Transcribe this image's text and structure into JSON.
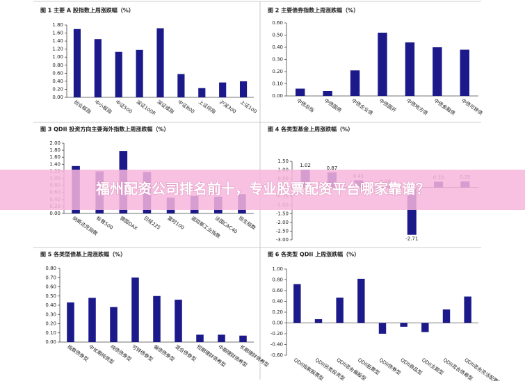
{
  "chart_data": [
    {
      "type": "bar",
      "title": "图 1  主要 A 股指数上周涨跌幅（%）",
      "color": "#1c1a8a",
      "categories": [
        "创业板指",
        "中小板指",
        "中证500",
        "深证100R",
        "深证成指",
        "中证800",
        "上证综指",
        "沪深300",
        "上证100"
      ],
      "values": [
        1.7,
        1.45,
        1.13,
        1.18,
        1.72,
        0.58,
        0.23,
        0.37,
        0.4
      ],
      "ylim": [
        0,
        1.8
      ],
      "yticks": [
        {
          "value": 0,
          "label": "0.00"
        },
        {
          "value": 0.2,
          "label": "0.20"
        },
        {
          "value": 0.4,
          "label": "0.40"
        },
        {
          "value": 0.6,
          "label": "0.60"
        },
        {
          "value": 0.8,
          "label": "0.80"
        },
        {
          "value": 1.0,
          "label": "1.00"
        },
        {
          "value": 1.2,
          "label": "1.20"
        },
        {
          "value": 1.4,
          "label": "1.40"
        },
        {
          "value": 1.6,
          "label": "1.60"
        },
        {
          "value": 1.8,
          "label": "1.80"
        }
      ]
    },
    {
      "type": "bar",
      "title": "图 2  主要债券指数上周涨跌幅（%）",
      "color": "#1c1a8a",
      "categories": [
        "中债总指",
        "中债国债",
        "中债企业债",
        "中债国开",
        "中债地方债",
        "中债金融债",
        "中债可转债"
      ],
      "values": [
        0.06,
        0.04,
        0.21,
        0.52,
        0.44,
        0.4,
        0.38
      ],
      "ylim": [
        0,
        0.6
      ],
      "yticks": [
        {
          "value": 0,
          "label": "0.00"
        },
        {
          "value": 0.1,
          "label": "0.10"
        },
        {
          "value": 0.2,
          "label": "0.20"
        },
        {
          "value": 0.3,
          "label": "0.30"
        },
        {
          "value": 0.4,
          "label": "0.40"
        },
        {
          "value": 0.5,
          "label": "0.50"
        },
        {
          "value": 0.6,
          "label": "0.60"
        }
      ]
    },
    {
      "type": "bar",
      "title": "图 3 QDII 投资方向主要海外指数上周涨跌幅（%）",
      "color": "#1c1a8a",
      "categories": [
        "纳斯达克指数",
        "标普500",
        "德国DAX",
        "日经225",
        "富时100",
        "道琼斯工业指数",
        "法国CAC40",
        "恒生指数"
      ],
      "values": [
        1.35,
        1.2,
        1.78,
        1.18,
        0.45,
        0.5,
        0.48,
        0.55
      ],
      "ylim": [
        0,
        2.0
      ],
      "yticks": [
        {
          "value": 0,
          "label": "0.00"
        },
        {
          "value": 0.2,
          "label": "0.20"
        },
        {
          "value": 0.4,
          "label": "0.40"
        },
        {
          "value": 0.6,
          "label": "0.60"
        },
        {
          "value": 0.8,
          "label": "0.80"
        },
        {
          "value": 1.0,
          "label": "1.00"
        },
        {
          "value": 1.2,
          "label": "1.20"
        },
        {
          "value": 1.4,
          "label": "1.40"
        },
        {
          "value": 1.6,
          "label": "1.60"
        },
        {
          "value": 1.8,
          "label": "1.80"
        },
        {
          "value": 2.0,
          "label": "2.00"
        }
      ]
    },
    {
      "type": "bar",
      "title": "图 4  各类型基金上周涨跌幅（%）",
      "color": "#1c1a8a",
      "data_labels": true,
      "categories": [
        null,
        null,
        null,
        null,
        null,
        null,
        null
      ],
      "values": [
        1.02,
        0.87,
        0.41,
        0.08,
        -2.71,
        0.33,
        0.35
      ],
      "ylim": [
        -3,
        1.5
      ],
      "yticks": [
        {
          "value": -3,
          "label": "-3.00"
        },
        {
          "value": -2.5,
          "label": "-2.50"
        },
        {
          "value": -2,
          "label": "-2.00"
        },
        {
          "value": -1.5,
          "label": "-1.50"
        },
        {
          "value": -1,
          "label": "-1.00"
        },
        {
          "value": -0.5,
          "label": "-0.50"
        },
        {
          "value": 0,
          "label": "0.00"
        },
        {
          "value": 0.5,
          "label": "0.50"
        },
        {
          "value": 1,
          "label": "1.00"
        },
        {
          "value": 1.5,
          "label": "1.50"
        }
      ]
    },
    {
      "type": "bar",
      "title": "图 5  各类型债基上周涨跌幅（%）",
      "color": "#1c1a8a",
      "categories": [
        "指数债券型",
        "中长期纯债型",
        "纯债债券型",
        "可转债券型",
        "偏债债券型",
        "混合债券型",
        "短期理财债券型",
        "中期理财债券型",
        "长期理财债券型"
      ],
      "values": [
        0.43,
        0.48,
        0.38,
        0.7,
        0.5,
        0.46,
        0.08,
        0.08,
        0.07
      ],
      "ylim": [
        0,
        0.8
      ],
      "yticks": [
        {
          "value": 0,
          "label": "0.00"
        },
        {
          "value": 0.1,
          "label": "0.10"
        },
        {
          "value": 0.2,
          "label": "0.20"
        },
        {
          "value": 0.3,
          "label": "0.30"
        },
        {
          "value": 0.4,
          "label": "0.40"
        },
        {
          "value": 0.5,
          "label": "0.50"
        },
        {
          "value": 0.6,
          "label": "0.60"
        },
        {
          "value": 0.7,
          "label": "0.70"
        },
        {
          "value": 0.8,
          "label": "0.80"
        }
      ]
    },
    {
      "type": "bar",
      "title": "图 6  各类型 QDII 上周涨跌幅（%）",
      "color": "#1c1a8a",
      "categories": [
        "QDII指数股票型",
        "QDII另类投资型",
        "QDII混合偏股型",
        "QDII股票型",
        "QDII债券型",
        "QDII商品型",
        "QDII主题型",
        "QDII混合债券型",
        "QDII混合灵活配置型"
      ],
      "values": [
        0.72,
        0.07,
        0.47,
        0.82,
        -0.2,
        -0.07,
        -0.17,
        0.25,
        0.49
      ],
      "ylim": [
        -0.6,
        1.0
      ],
      "yticks": [
        {
          "value": -0.6,
          "label": "-0.60"
        },
        {
          "value": -0.4,
          "label": "-0.40"
        },
        {
          "value": -0.2,
          "label": "-0.20"
        },
        {
          "value": 0,
          "label": "0.00"
        },
        {
          "value": 0.2,
          "label": "0.20"
        },
        {
          "value": 0.4,
          "label": "0.40"
        },
        {
          "value": 0.6,
          "label": "0.60"
        },
        {
          "value": 0.8,
          "label": "0.80"
        },
        {
          "value": 1.0,
          "label": "1.00"
        }
      ]
    }
  ],
  "overlay_text": "福州配资公司排名前十，专业股票配资平台哪家靠谱？"
}
